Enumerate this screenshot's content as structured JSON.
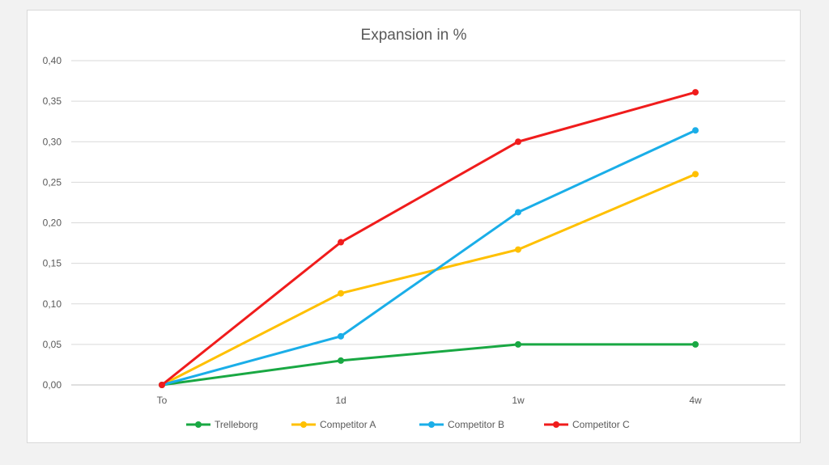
{
  "chart_data": {
    "type": "line",
    "title": "Expansion in %",
    "xlabel": "",
    "ylabel": "",
    "categories": [
      "To",
      "1d",
      "1w",
      "4w"
    ],
    "ylim": [
      0,
      0.4
    ],
    "yticks": [
      "0,00",
      "0,05",
      "0,10",
      "0,15",
      "0,20",
      "0,25",
      "0,30",
      "0,35",
      "0,40"
    ],
    "grid": true,
    "legend_position": "bottom",
    "series": [
      {
        "name": "Trelleborg",
        "color": "#19a843",
        "values": [
          0.0,
          0.03,
          0.05,
          0.05
        ]
      },
      {
        "name": "Competitor A",
        "color": "#ffc000",
        "values": [
          0.0,
          0.113,
          0.167,
          0.26
        ]
      },
      {
        "name": "Competitor B",
        "color": "#1aaee8",
        "values": [
          0.0,
          0.06,
          0.213,
          0.314
        ]
      },
      {
        "name": "Competitor C",
        "color": "#f01c1c",
        "values": [
          0.0,
          0.176,
          0.3,
          0.361
        ]
      }
    ]
  }
}
